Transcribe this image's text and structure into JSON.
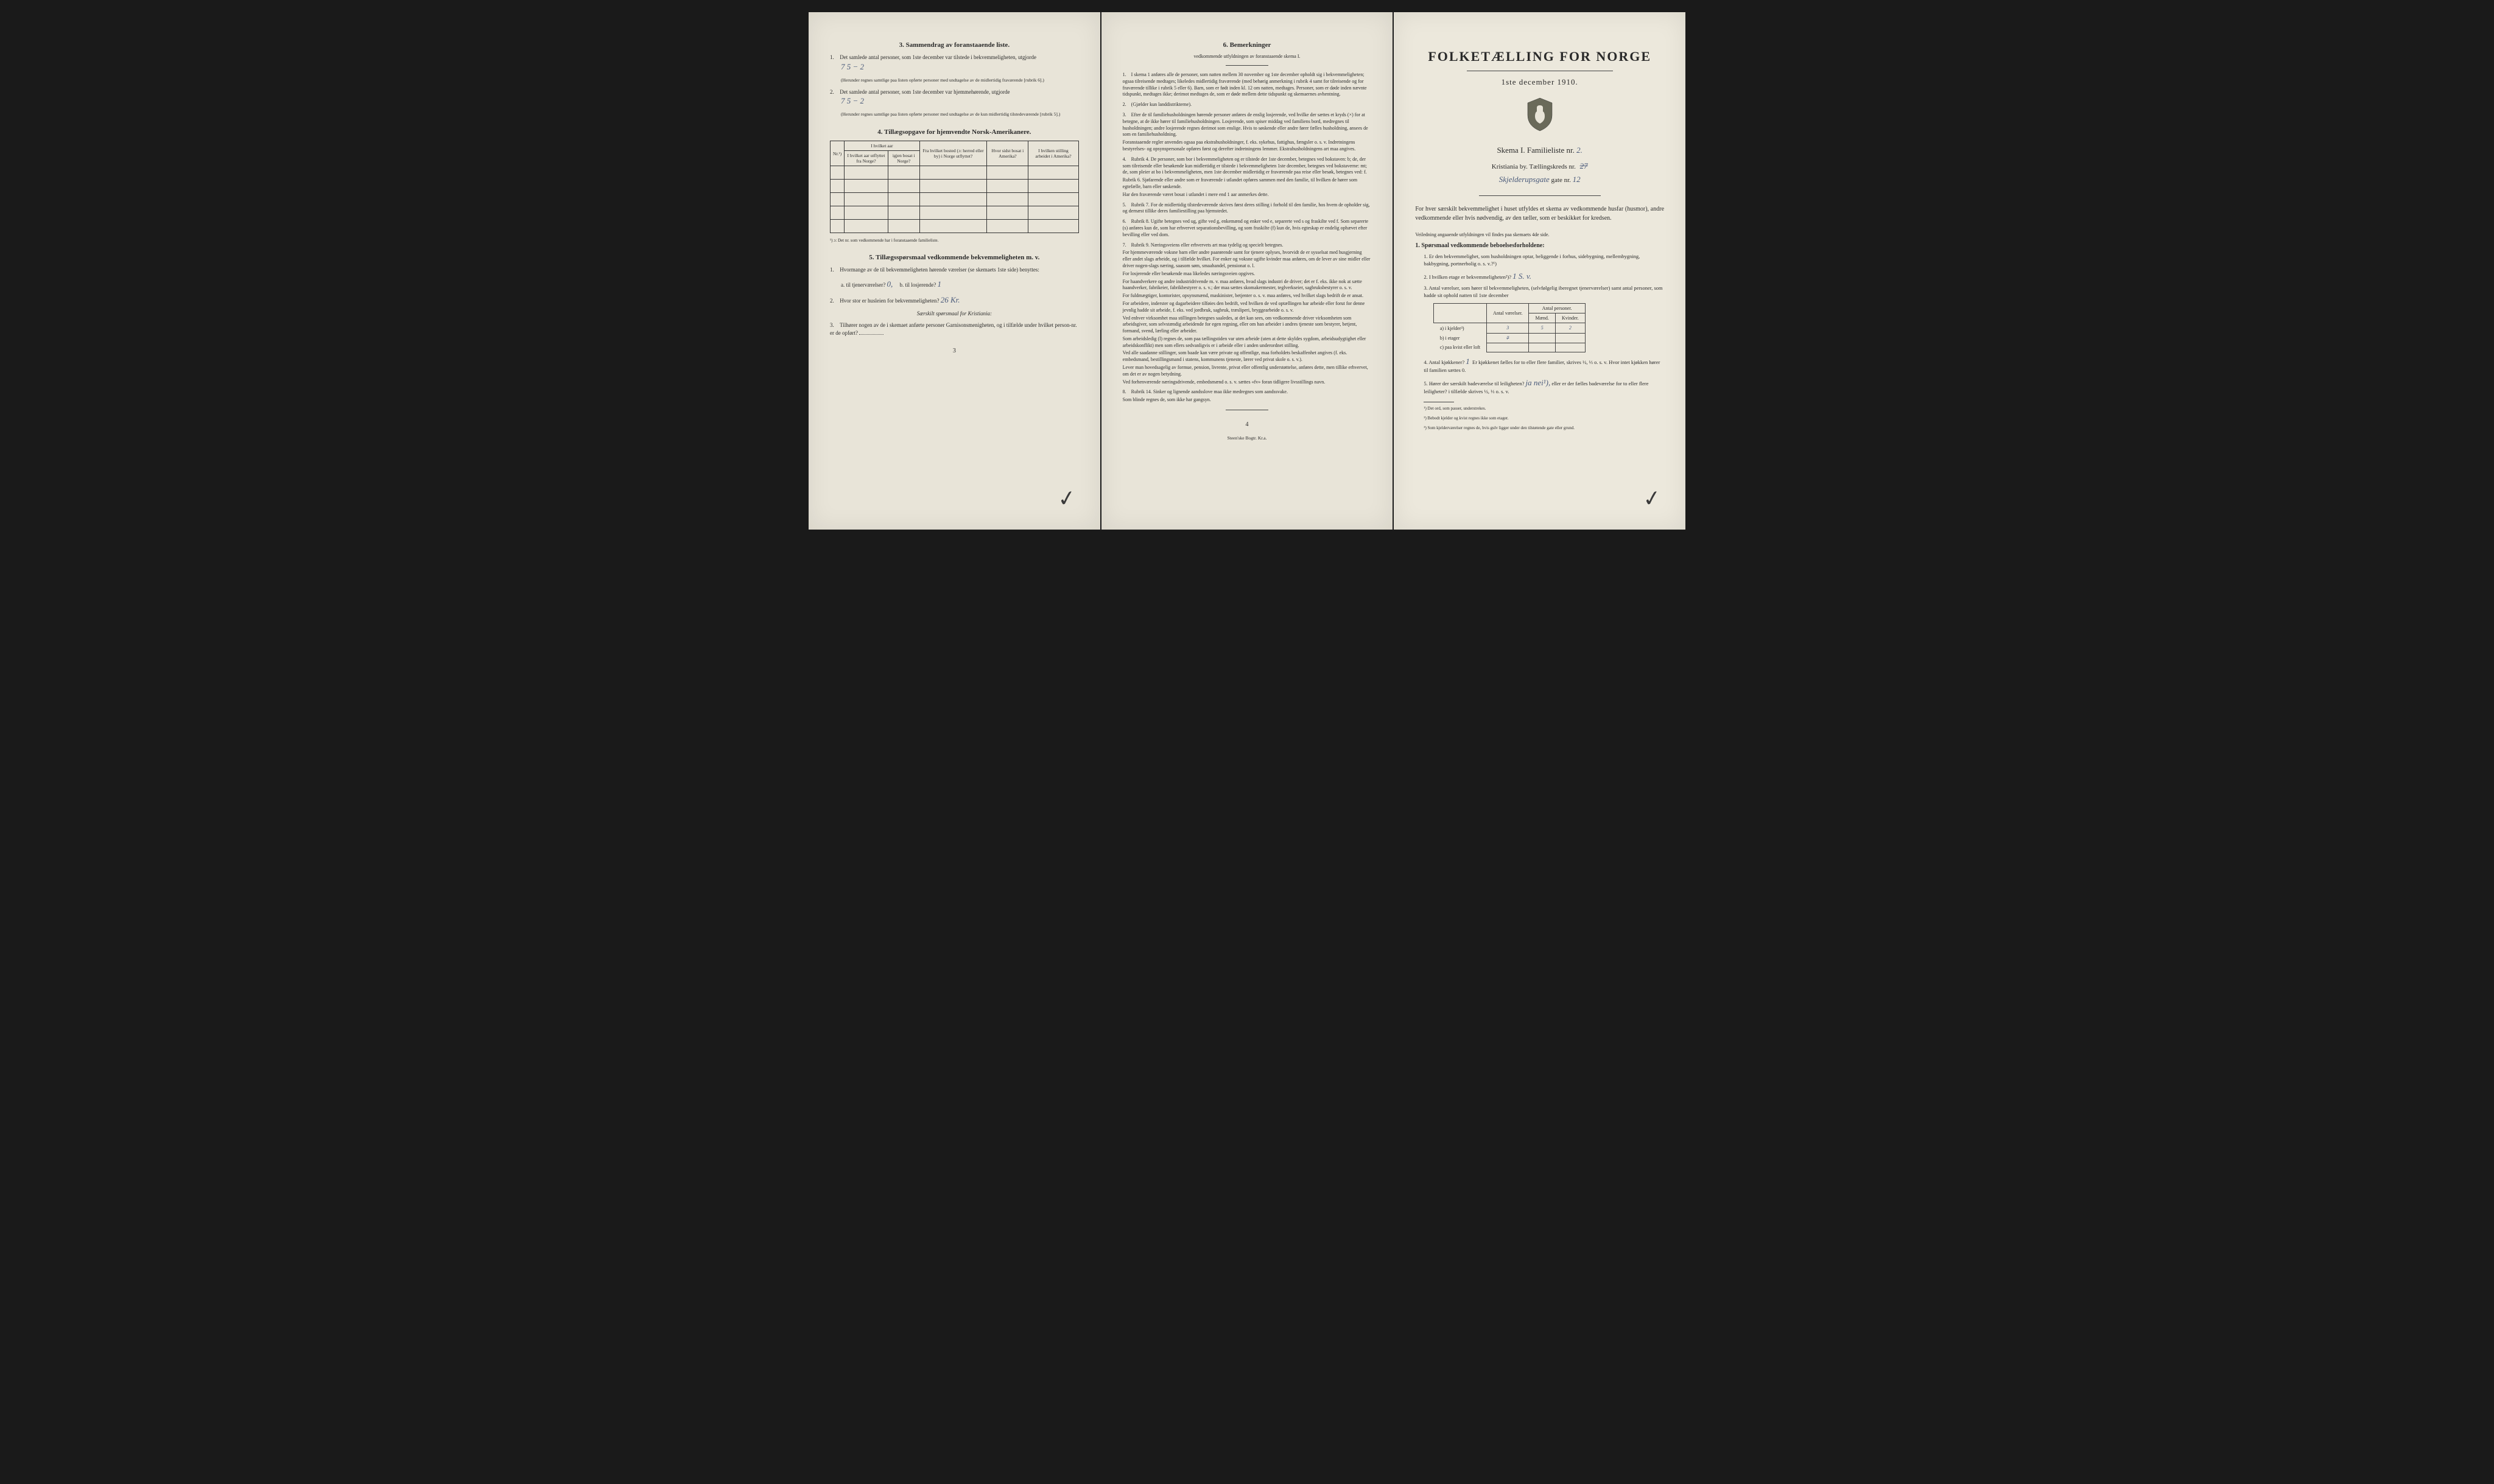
{
  "page_left": {
    "section3": {
      "title": "3.   Sammendrag av foranstaaende liste.",
      "item1": "Det samlede antal personer, som 1ste december var tilstede i bekvemmeligheten, utgjorde",
      "item1_val": "7           5 − 2",
      "item1_note": "(Herunder regnes samtlige paa listen opførte personer med undtagelse av de midlertidig fraværende [rubrik 6].)",
      "item2": "Det samlede antal personer, som 1ste december var hjemmehørende, utgjorde",
      "item2_val": "7           5 − 2",
      "item2_note": "(Herunder regnes samtlige paa listen opførte personer med undtagelse av de kun midlertidig tilstedeværende [rubrik 5].)"
    },
    "section4": {
      "title": "4.   Tillægsopgave for hjemvendte Norsk-Amerikanere.",
      "cols": [
        "Nr.¹)",
        "I hvilket aar utflyttet fra Norge?",
        "igjen bosat i Norge?",
        "Fra hvilket bosted (ɔ: herred eller by) i Norge utflyttet?",
        "Hvor sidst bosat i Amerika?",
        "I hvilken stilling arbeidet i Amerika?"
      ],
      "footnote": "¹) ɔ: Det nr. som vedkommende har i foranstaaende familieliste."
    },
    "section5": {
      "title": "5.   Tillægsspørsmaal vedkommende bekvemmeligheten m. v.",
      "q1": "Hvormange av de til bekvemmeligheten hørende værelser (se skemaets 1ste side) benyttes:",
      "q1a": "a. til tjenerværelser?",
      "q1a_val": "0,",
      "q1b": "b. til losjerende?",
      "q1b_val": "1",
      "q2": "Hvor stor er husleien for bekvemmeligheten?",
      "q2_val": "26 Kr.",
      "q2_note": "Særskilt spørsmaal for Kristiania:",
      "q3": "Tilhører nogen av de i skemaet anførte personer Garnisonsmenigheten, og i tilfælde under hvilket person-nr. er de opført?"
    },
    "page_num": "3"
  },
  "page_mid": {
    "section6": {
      "title": "6.   Bemerkninger",
      "subtitle": "vedkommende utfyldningen av foranstaaende skema I.",
      "items": [
        "I skema 1 anføres alle de personer, som natten mellem 30 november og 1ste december opholdt sig i bekvemmeligheten; ogsaa tilreisende medtages; likeledes midlertidig fraværende (med behørig anmerkning i rubrik 4 samt for tilreisende og for fraværende tillike i rubrik 5 eller 6). Barn, som er født inden kl. 12 om natten, medtages. Personer, som er døde inden nævnte tidspunkt, medtages ikke; derimot medtages de, som er døde mellem dette tidspunkt og skemaernes avhentning.",
        "(Gjælder kun landdistrikterne).",
        "Efter de til familiehusholdningen hørende personer anføres de enslig losjerende, ved hvilke der sættes et kryds (×) for at betegne, at de ikke hører til familiehusholdningen. Losjerende, som spiser middag ved familiens bord, medregnes til husholdningen; andre losjerende regnes derimot som enslige. Hvis to søskende eller andre fører fælles husholdning, ansees de som en familiehusholdning.\n   Foranstaaende regler anvendes ogsaa paa ekstrahusholdninger, f. eks. sykehus, fattighus, fængsler o. s. v. Indretningens bestyrelses- og opsynspersonale opføres først og derefter indretningens lemmer. Ekstrahusholdningens art maa angives.",
        "Rubrik 4. De personer, som bor i bekvemmeligheten og er tilstede der 1ste december, betegnes ved bokstaven: b; de, der som tilreisende eller besøkende kun midlertidig er tilstede i bekvemmeligheten 1ste december, betegnes ved bokstaverne: mt; de, som pleier at bo i bekvemmeligheten, men 1ste december midlertidig er fraværende paa reise eller besøk, betegnes ved: f.\n   Rubrik 6. Sjøfarende eller andre som er fraværende i utlandet opføres sammen med den familie, til hvilken de hører som egtefælle, barn eller søskende.\n   Har den fraværende været bosat i utlandet i mere end 1 aar anmerkes dette.",
        "Rubrik 7. For de midlertidig tilstedeværende skrives først deres stilling i forhold til den familie, hos hvem de opholder sig, og dernæst tillike deres familiestilling paa hjemstedet.",
        "Rubrik 8. Ugifte betegnes ved ug, gifte ved g, enkemænd og enker ved e, separerte ved s og fraskilte ved f. Som separerte (s) anføres kun de, som har erhvervet separationsbevilling, og som fraskilte (f) kun de, hvis egteskap er endelig ophævet efter bevilling eller ved dom.",
        "Rubrik 9. Næringsveiens eller erhvervets art maa tydelig og specielt betegnes.\n   For hjemmeværende voksne barn eller andre paarørende samt for tjenere oplyses, hvorvidt de er sysselsat med husgjerning eller andet slags arbeide, og i tilfælde hvilket. For enker og voksne ugifte kvinder maa anføres, om de lever av sine midler eller driver nogen-slags næring, saasom søm, smaahandel, pensionat o. l.\n   For losjerende eller besøkende maa likeledes næringsveien opgives.\n   For haandverkere og andre industridrivende m. v. maa anføres, hvad slags industri de driver; det er f. eks. ikke nok at sætte haandverker, fabrikeier, fabrikbestyrer o. s. v.; der maa sættes skomakermester, teglverkseier, sagbruksbestyrer o. s. v.\n   For fuldmægtiger, kontorister, opsynsmænd, maskinister, betjenter o. s. v. maa anføres, ved hvilket slags bedrift de er ansat.\n   For arbeidere, inderster og dagarbeidere tilføies den bedrift, ved hvilken de ved optællingen har arbeide eller forut for denne jevnlig hadde sit arbeide, f. eks. ved jordbruk, sagbruk, træsliperi, bryggearbeide o. s. v.\n   Ved enhver virksomhet maa stillingen betegnes saaledes, at det kan sees, om vedkommende driver virksomheten som arbeidsgiver, som selvstændig arbeidende for egen regning, eller om han arbeider i andres tjeneste som bestyrer, betjent, formand, svend, lærling eller arbeider.\n   Som arbeidsledig (l) regnes de, som paa tællingstiden var uten arbeide (uten at dette skyldes sygdom, arbeidsudygtighet eller arbeidskonflikt) men som ellers sedvanligvis er i arbeide eller i anden underordnet stilling.\n   Ved alle saadanne stillinger, som baade kan være private og offentlige, maa forholdets beskaffenhet angives (f. eks. embedsmand, bestillingsmand i statens, kommunens tjeneste, lærer ved privat skole o. s. v.).\n   Lever man hovedsagelig av formue, pension, livrente, privat eller offentlig understøttelse, anføres dette, men tillike erhvervet, om det er av nogen betydning.\n   Ved forhenværende næringsdrivende, embedsmænd o. s. v. sættes «fv» foran tidligere livsstillings navn.",
        "Rubrik 14. Sinker og lignende aandsslove maa ikke medregnes som aandssvake.\n   Som blinde regnes de, som ikke har gangsyn."
      ]
    },
    "page_num": "4",
    "printer": "Steen'ske Bogtr.  Kr.a."
  },
  "page_right": {
    "title": "FOLKETÆLLING FOR NORGE",
    "subtitle": "1ste december 1910.",
    "skema": "Skema I.   Familieliste nr.",
    "skema_val": "2.",
    "city": "Kristiania by.   Tællingskreds nr.",
    "city_val": "",
    "street_val": "Skjelderupsgate",
    "street_suffix": "gate nr.",
    "street_num": "12",
    "intro": "For hver særskilt bekvemmelighet i huset utfyldes et skema av vedkommende husfar (husmor), andre vedkommende eller hvis nødvendig, av den tæller, som er beskikket for kredsen.",
    "intro2": "Veiledning angaaende utfyldningen vil findes paa skemaets 4de side.",
    "s1_title": "1. Spørsmaal vedkommende beboelsesforholdene:",
    "q1": "1. Er den bekvemmelighet, som husholdningen optar, beliggende i forhus, sidebygning, mellembygning, bakbygning, portnerbolig o. s. v.?¹)",
    "q2": "2. I hvilken etage er bekvemmeligheten²)?",
    "q2_val": "1 S. v.",
    "q3": "3. Antal værelser, som hører til bekvemmeligheten, (selvfølgelig iberegnet tjenerværelser) samt antal personer, som hadde sit ophold natten til 1ste december",
    "table_cols": [
      "",
      "Antal værelser.",
      "Mænd.",
      "Kvinder."
    ],
    "table_cols_group": "Antal personer.",
    "row_a": "a) i kjelder³)",
    "row_a_vals": [
      "3",
      "5",
      "2"
    ],
    "row_b": "b) i etager",
    "row_b_vals": [
      "7",
      "",
      ""
    ],
    "row_c": "c) paa kvist eller loft",
    "q4": "4. Antal kjøkkener?",
    "q4_val": "1",
    "q4_tail": "Er kjøkkenet fælles for to eller flere familier, skrives ½, ⅓ o. s. v.  Hvor intet kjøkken hører til familien sættes 0.",
    "q5": "5. Hører der særskilt badeværelse til leiligheten?",
    "q5_val": "ja  nei¹),",
    "q5_tail": "eller er der fælles badeværelse for to eller flere leiligheter? i tilfælde skrives ½, ⅓ o. s. v.",
    "fn1": "¹) Det ord, som passer, understrekes.",
    "fn2": "²) Bebodt kjelder og kvist regnes ikke som etager.",
    "fn3": "³) Som kjelderværelser regnes de, hvis gulv ligger under den tilstøtende gate eller grund."
  }
}
